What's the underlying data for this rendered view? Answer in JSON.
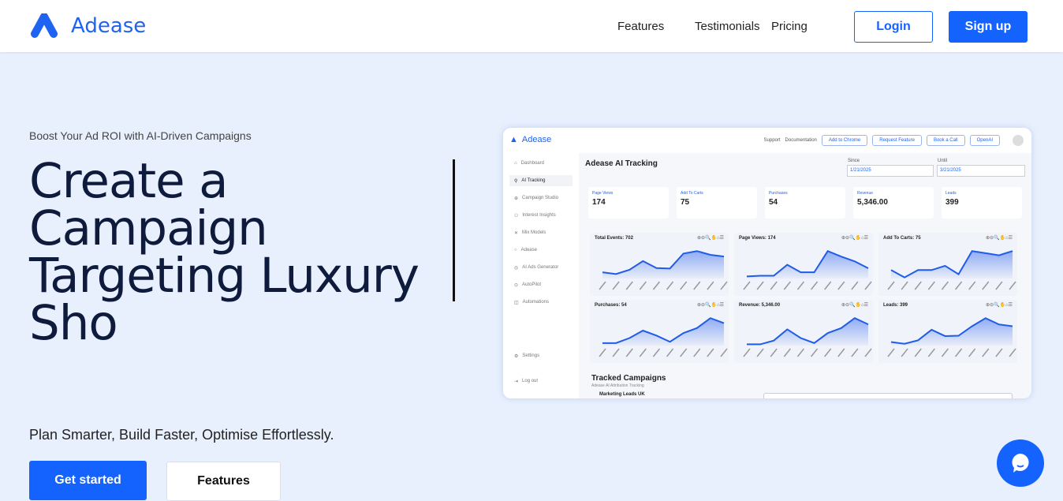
{
  "nav": {
    "brand": "Adease",
    "links": [
      "Features",
      "Testimonials",
      "Pricing"
    ],
    "login": "Login",
    "signup": "Sign up"
  },
  "hero": {
    "eyebrow": "Boost Your Ad ROI with AI-Driven Campaigns",
    "title": "Create a Campaign Targeting Luxury Sho",
    "subtitle": "Plan Smarter, Build Faster, Optimise Effortlessly.",
    "cta_primary": "Get started",
    "cta_secondary": "Features"
  },
  "colors": {
    "accent": "#1463ff",
    "background": "#e8f0fd",
    "title": "#0f1b3d"
  },
  "dashboard": {
    "brand": "Adease",
    "top_links": [
      "Support",
      "Documentation"
    ],
    "top_buttons": [
      "Add to Chrome",
      "Request Feature",
      "Book a Call",
      "OpenAI"
    ],
    "sidebar": [
      "Dashboard",
      "AI Tracking",
      "Campaign Studio",
      "Interest Insights",
      "Mix Models",
      "Adease",
      "AI Ads Generator",
      "AutoPilot",
      "Automations"
    ],
    "sidebar_bottom": [
      "Settings",
      "Log out"
    ],
    "active_item": "AI Tracking",
    "title": "Adease AI Tracking",
    "since_label": "Since",
    "since_value": "1/21/2025",
    "until_label": "Until",
    "until_value": "3/21/2025",
    "stats": [
      {
        "label": "Page Views",
        "value": "174"
      },
      {
        "label": "Add To Carts",
        "value": "75"
      },
      {
        "label": "Purchases",
        "value": "54"
      },
      {
        "label": "Revenue",
        "value": "5,346.00"
      },
      {
        "label": "Leads",
        "value": "399"
      }
    ],
    "chart_data": [
      {
        "type": "area",
        "title": "Total Events: 702",
        "values": [
          25,
          18,
          35,
          70,
          42,
          40,
          100,
          110,
          95,
          88
        ]
      },
      {
        "type": "area",
        "title": "Page Views: 174",
        "values": [
          3,
          4,
          4,
          20,
          9,
          9,
          40,
          32,
          25,
          15
        ]
      },
      {
        "type": "area",
        "title": "Add To Carts: 75",
        "values": [
          4,
          0.5,
          4,
          4,
          6,
          2,
          13,
          12,
          11,
          13
        ]
      },
      {
        "type": "area",
        "title": "Purchases: 54",
        "values": [
          1,
          1,
          3,
          6,
          4,
          1.5,
          5,
          7,
          11,
          9
        ]
      },
      {
        "type": "area",
        "title": "Revenue: 5,346.00",
        "values": [
          50,
          50,
          200,
          650,
          300,
          100,
          500,
          700,
          1100,
          850
        ]
      },
      {
        "type": "area",
        "title": "Leads: 399",
        "values": [
          10,
          5,
          15,
          45,
          27,
          28,
          55,
          78,
          60,
          55
        ]
      }
    ],
    "section_title": "Tracked Campaigns",
    "section_subtitle": "Adease AI Attribution Tracking",
    "campaign": "Marketing Leads UK"
  }
}
